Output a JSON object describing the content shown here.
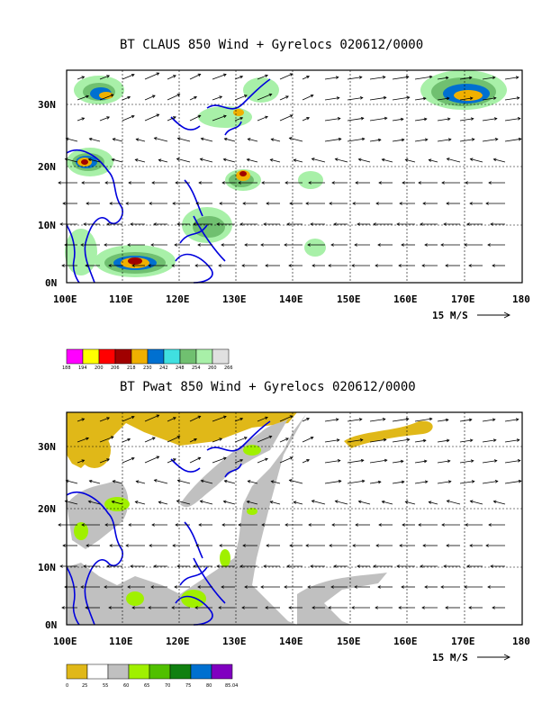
{
  "panel1": {
    "title": "BT CLAUS 850 Wind + Gyrelocs 020612/0000",
    "lat_labels": [
      "30N",
      "20N",
      "10N",
      "0N"
    ],
    "lon_labels": [
      "100E",
      "110E",
      "120E",
      "130E",
      "140E",
      "150E",
      "160E",
      "170E",
      "180"
    ],
    "ref_vector": "15 M/S",
    "colorbar": {
      "labels": [
        "188",
        "194",
        "200",
        "206",
        "218",
        "230",
        "242",
        "248",
        "254",
        "260",
        "266"
      ],
      "colors": [
        "#ff00ff",
        "#ffff00",
        "#ff0000",
        "#a00000",
        "#f0b000",
        "#0070d0",
        "#40e0e0",
        "#70c070",
        "#a8f0a8",
        "#e0e0e0"
      ]
    }
  },
  "panel2": {
    "title": "BT Pwat 850 Wind + Gyrelocs 020612/0000",
    "lat_labels": [
      "30N",
      "20N",
      "10N",
      "0N"
    ],
    "lon_labels": [
      "100E",
      "110E",
      "120E",
      "130E",
      "140E",
      "150E",
      "160E",
      "170E",
      "180"
    ],
    "ref_vector": "15 M/S",
    "colorbar": {
      "labels": [
        "0",
        "25",
        "55",
        "60",
        "65",
        "70",
        "75",
        "80",
        "85.04"
      ],
      "colors": [
        "#e0b818",
        "#ffffff",
        "#c0c0c0",
        "#a0f000",
        "#50c000",
        "#108010",
        "#0070d0",
        "#8000c0"
      ]
    }
  }
}
